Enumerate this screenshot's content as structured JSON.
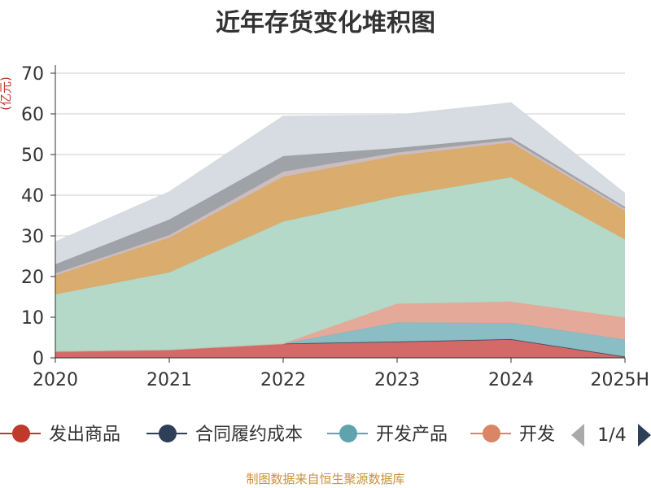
{
  "chart_data": {
    "type": "area",
    "stacked": true,
    "title": "近年存货变化堆积图",
    "ylabel": "(亿元)",
    "xlabel": "",
    "categories": [
      "2020",
      "2021",
      "2022",
      "2023",
      "2024",
      "2025H"
    ],
    "ylim": [
      0,
      70
    ],
    "yticks": [
      "0",
      "10",
      "20",
      "30",
      "40",
      "50",
      "60",
      "70"
    ],
    "grid": true,
    "series": [
      {
        "name": "发出商品",
        "color": "#d2625f",
        "values": [
          1.6,
          2.0,
          3.5,
          4.0,
          4.6,
          0.3
        ]
      },
      {
        "name": "合同履约成本",
        "color": "#2e4057",
        "values": [
          0.0,
          0.0,
          0.0,
          0.0,
          0.0,
          0.0
        ]
      },
      {
        "name": "开发产品",
        "color": "#85b9c1",
        "values": [
          0.0,
          0.0,
          0.0,
          4.7,
          4.0,
          4.2
        ]
      },
      {
        "name": "开发成本",
        "color": "#e4a493",
        "values": [
          0.0,
          0.0,
          0.0,
          4.6,
          5.2,
          5.4
        ]
      },
      {
        "name": "",
        "color": "#b1d7c5",
        "values": [
          14.0,
          19.0,
          30.0,
          26.4,
          30.6,
          19.2
        ]
      },
      {
        "name": "",
        "color": "#d8a966",
        "values": [
          4.6,
          8.5,
          11.0,
          10.0,
          8.5,
          7.0
        ]
      },
      {
        "name": "",
        "color": "#c9b9bb",
        "values": [
          0.6,
          0.7,
          1.3,
          0.8,
          0.7,
          0.6
        ]
      },
      {
        "name": "",
        "color": "#9a9ea3",
        "values": [
          2.2,
          3.8,
          3.8,
          1.1,
          0.6,
          0.4
        ]
      },
      {
        "name": "",
        "color": "#d5dae0",
        "values": [
          5.5,
          6.8,
          9.8,
          8.1,
          8.5,
          3.3
        ]
      }
    ]
  },
  "legend": {
    "visible_items": [
      "发出商品",
      "合同履约成本",
      "开发产品",
      "开发"
    ],
    "page_indicator": "1/4"
  },
  "source_note": "制图数据来自恒生聚源数据库",
  "colors": {
    "title": "#333333",
    "axis_text": "#333333",
    "ylabel": "#c0392b",
    "source": "#c9913c",
    "gridline": "#cccccc"
  }
}
